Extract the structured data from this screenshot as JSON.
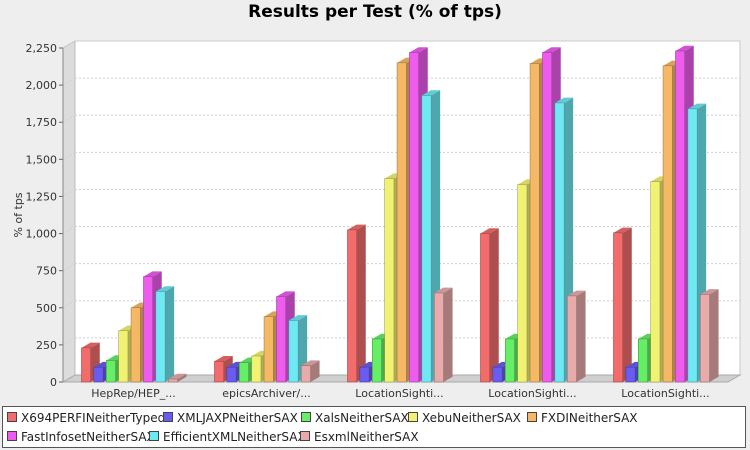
{
  "chart_data": {
    "type": "bar",
    "title": "Results per Test (% of tps)",
    "ylabel": "% of tps",
    "xlabel": "",
    "ylim": [
      0,
      2250
    ],
    "yticks": [
      0,
      250,
      500,
      750,
      1000,
      1250,
      1500,
      1750,
      2000,
      2250
    ],
    "ytick_labels": [
      "0",
      "250",
      "500",
      "750",
      "1,000",
      "1,250",
      "1,500",
      "1,750",
      "2,000",
      "2,250"
    ],
    "grid": true,
    "legend_position": "bottom",
    "categories": [
      "HepRep/HEP_...",
      "epicsArchiver/...",
      "LocationSighti...",
      "LocationSighti...",
      "LocationSighti..."
    ],
    "series": [
      {
        "name": "X694PERFINeitherTyped",
        "color": "#f26c6c",
        "values": [
          230,
          140,
          1025,
          1000,
          1005
        ]
      },
      {
        "name": "XMLJAXPNeitherSAX",
        "color": "#6a5cf0",
        "values": [
          100,
          100,
          100,
          100,
          100
        ]
      },
      {
        "name": "XalsNeitherSAX",
        "color": "#66ee66",
        "values": [
          145,
          130,
          290,
          290,
          290
        ]
      },
      {
        "name": "XebuNeitherSAX",
        "color": "#f2f272",
        "values": [
          345,
          175,
          1370,
          1330,
          1350
        ]
      },
      {
        "name": "FXDINeitherSAX",
        "color": "#f5b865",
        "values": [
          500,
          440,
          2150,
          2145,
          2130
        ]
      },
      {
        "name": "FastInfosetNeitherSAX",
        "color": "#ee5cee",
        "values": [
          710,
          575,
          2220,
          2220,
          2230
        ]
      },
      {
        "name": "EfficientXMLNeitherSAX",
        "color": "#6ee8f2",
        "values": [
          610,
          415,
          1930,
          1880,
          1840
        ]
      },
      {
        "name": "EsxmlNeitherSAX",
        "color": "#e8aaaa",
        "values": [
          20,
          110,
          600,
          580,
          590
        ]
      }
    ]
  }
}
